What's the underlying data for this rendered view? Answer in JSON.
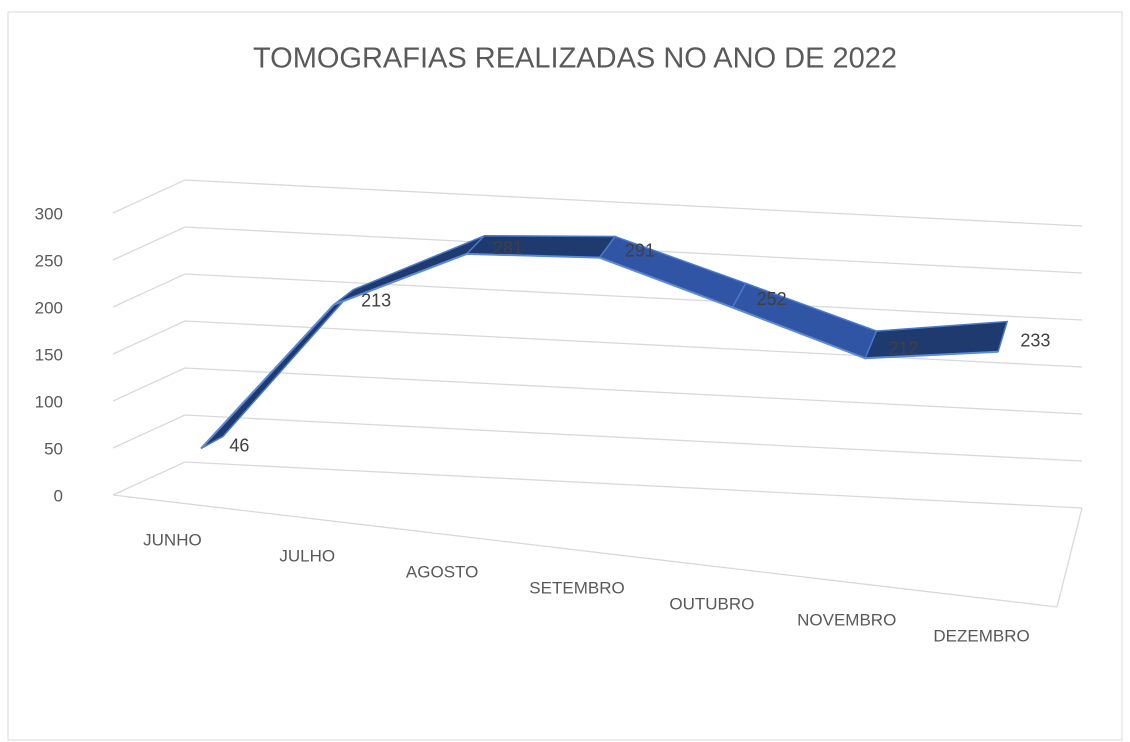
{
  "chart_data": {
    "type": "line3d",
    "title": "TOMOGRAFIAS REALIZADAS NO ANO DE 2022",
    "categories": [
      "JUNHO",
      "JULHO",
      "AGOSTO",
      "SETEMBRO",
      "OUTUBRO",
      "NOVEMBRO",
      "DEZEMBRO"
    ],
    "values": [
      46,
      213,
      281,
      291,
      252,
      212,
      233
    ],
    "color": "#2f55a4",
    "ylim": [
      0,
      300
    ],
    "yticks": [
      0,
      50,
      100,
      150,
      200,
      250,
      300
    ],
    "grid": true
  }
}
